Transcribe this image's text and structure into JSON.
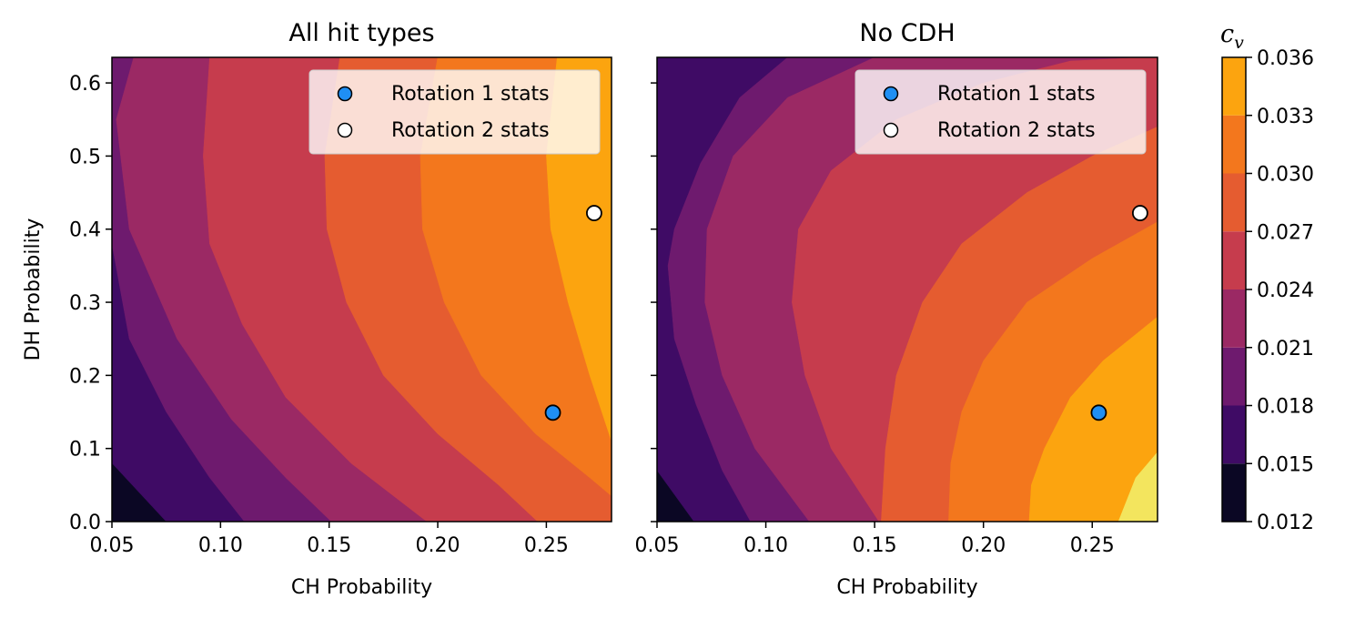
{
  "chart_data": {
    "type": "contourf",
    "colorbar": {
      "label": "c_v",
      "levels": [
        0.012,
        0.015,
        0.018,
        0.021,
        0.024,
        0.027,
        0.03,
        0.033,
        0.036
      ],
      "tick_labels": [
        "0.012",
        "0.015",
        "0.018",
        "0.021",
        "0.024",
        "0.027",
        "0.030",
        "0.033",
        "0.036"
      ],
      "colors": [
        "#0b0724",
        "#3f0b65",
        "#6e1a6e",
        "#9b2964",
        "#c63c4d",
        "#e55c30",
        "#f3771d",
        "#fca40f",
        "#f3e55e"
      ]
    },
    "colormap": "inferno",
    "shared": {
      "xlabel": "CH Probability",
      "ylabel": "DH Probability",
      "xlim": [
        0.05,
        0.28
      ],
      "ylim": [
        0.0,
        0.635
      ],
      "xticks": [
        0.05,
        0.1,
        0.15,
        0.2,
        0.25
      ],
      "xtick_labels": [
        "0.05",
        "0.10",
        "0.15",
        "0.20",
        "0.25"
      ],
      "yticks": [
        0.0,
        0.1,
        0.2,
        0.3,
        0.4,
        0.5,
        0.6
      ],
      "ytick_labels": [
        "0.0",
        "0.1",
        "0.2",
        "0.3",
        "0.4",
        "0.5",
        "0.6"
      ]
    },
    "panels": [
      {
        "title": "All hit types",
        "show_ylabel": true,
        "legend": {
          "placement": "top-right",
          "entries": [
            "Rotation 1 stats",
            "Rotation 2 stats"
          ]
        },
        "points": [
          {
            "name": "Rotation 1 stats",
            "x": 0.253,
            "y": 0.149,
            "color": "#1f8ff4"
          },
          {
            "name": "Rotation 2 stats",
            "x": 0.272,
            "y": 0.422,
            "color": "#ffffff"
          }
        ],
        "contour_boundaries": [
          {
            "level": 0.015,
            "pts": [
              [
                0.05,
                0.08
              ],
              [
                0.075,
                0.0
              ]
            ]
          },
          {
            "level": 0.018,
            "pts": [
              [
                0.05,
                0.38
              ],
              [
                0.058,
                0.25
              ],
              [
                0.075,
                0.15
              ],
              [
                0.095,
                0.06
              ],
              [
                0.111,
                0.0
              ]
            ]
          },
          {
            "level": 0.021,
            "pts": [
              [
                0.06,
                0.635
              ],
              [
                0.052,
                0.55
              ],
              [
                0.058,
                0.4
              ],
              [
                0.08,
                0.25
              ],
              [
                0.105,
                0.14
              ],
              [
                0.13,
                0.06
              ],
              [
                0.151,
                0.0
              ]
            ]
          },
          {
            "level": 0.024,
            "pts": [
              [
                0.095,
                0.635
              ],
              [
                0.092,
                0.5
              ],
              [
                0.095,
                0.38
              ],
              [
                0.11,
                0.27
              ],
              [
                0.13,
                0.17
              ],
              [
                0.16,
                0.08
              ],
              [
                0.195,
                0.0
              ]
            ]
          },
          {
            "level": 0.027,
            "pts": [
              [
                0.155,
                0.635
              ],
              [
                0.148,
                0.5
              ],
              [
                0.149,
                0.4
              ],
              [
                0.158,
                0.3
              ],
              [
                0.175,
                0.2
              ],
              [
                0.2,
                0.12
              ],
              [
                0.228,
                0.05
              ],
              [
                0.246,
                0.0
              ]
            ]
          },
          {
            "level": 0.03,
            "pts": [
              [
                0.2,
                0.635
              ],
              [
                0.192,
                0.5
              ],
              [
                0.193,
                0.4
              ],
              [
                0.203,
                0.3
              ],
              [
                0.22,
                0.2
              ],
              [
                0.245,
                0.12
              ],
              [
                0.27,
                0.06
              ],
              [
                0.28,
                0.035
              ]
            ]
          },
          {
            "level": 0.033,
            "pts": [
              [
                0.255,
                0.635
              ],
              [
                0.25,
                0.5
              ],
              [
                0.252,
                0.4
              ],
              [
                0.26,
                0.3
              ],
              [
                0.27,
                0.2
              ],
              [
                0.28,
                0.11
              ]
            ]
          },
          {
            "level": 0.036,
            "pts": [
              [
                0.28,
                0.635
              ],
              [
                0.28,
                0.635
              ]
            ]
          }
        ]
      },
      {
        "title": "No CDH",
        "show_ylabel": false,
        "legend": {
          "placement": "top-right",
          "entries": [
            "Rotation 1 stats",
            "Rotation 2 stats"
          ]
        },
        "points": [
          {
            "name": "Rotation 1 stats",
            "x": 0.253,
            "y": 0.149,
            "color": "#1f8ff4"
          },
          {
            "name": "Rotation 2 stats",
            "x": 0.272,
            "y": 0.422,
            "color": "#ffffff"
          }
        ],
        "contour_boundaries": [
          {
            "level": 0.015,
            "pts": [
              [
                0.05,
                0.07
              ],
              [
                0.067,
                0.0
              ]
            ]
          },
          {
            "level": 0.018,
            "pts": [
              [
                0.11,
                0.635
              ],
              [
                0.088,
                0.58
              ],
              [
                0.07,
                0.49
              ],
              [
                0.058,
                0.4
              ],
              [
                0.055,
                0.35
              ],
              [
                0.058,
                0.25
              ],
              [
                0.068,
                0.16
              ],
              [
                0.08,
                0.07
              ],
              [
                0.093,
                0.0
              ]
            ]
          },
          {
            "level": 0.021,
            "pts": [
              [
                0.15,
                0.635
              ],
              [
                0.11,
                0.58
              ],
              [
                0.085,
                0.5
              ],
              [
                0.073,
                0.4
              ],
              [
                0.072,
                0.3
              ],
              [
                0.08,
                0.2
              ],
              [
                0.095,
                0.1
              ],
              [
                0.12,
                0.0
              ]
            ]
          },
          {
            "level": 0.024,
            "pts": [
              [
                0.275,
                0.635
              ],
              [
                0.24,
                0.63
              ],
              [
                0.2,
                0.6
              ],
              [
                0.16,
                0.55
              ],
              [
                0.13,
                0.48
              ],
              [
                0.115,
                0.4
              ],
              [
                0.112,
                0.3
              ],
              [
                0.118,
                0.2
              ],
              [
                0.13,
                0.1
              ],
              [
                0.152,
                0.0
              ]
            ]
          },
          {
            "level": 0.027,
            "pts": [
              [
                0.28,
                0.54
              ],
              [
                0.25,
                0.5
              ],
              [
                0.22,
                0.45
              ],
              [
                0.19,
                0.38
              ],
              [
                0.172,
                0.3
              ],
              [
                0.16,
                0.2
              ],
              [
                0.155,
                0.1
              ],
              [
                0.153,
                0.0
              ]
            ]
          },
          {
            "level": 0.03,
            "pts": [
              [
                0.28,
                0.41
              ],
              [
                0.25,
                0.36
              ],
              [
                0.22,
                0.3
              ],
              [
                0.2,
                0.22
              ],
              [
                0.19,
                0.15
              ],
              [
                0.185,
                0.08
              ],
              [
                0.184,
                0.0
              ]
            ]
          },
          {
            "level": 0.033,
            "pts": [
              [
                0.28,
                0.28
              ],
              [
                0.255,
                0.22
              ],
              [
                0.24,
                0.17
              ],
              [
                0.228,
                0.1
              ],
              [
                0.222,
                0.05
              ],
              [
                0.221,
                0.0
              ]
            ]
          },
          {
            "level": 0.036,
            "pts": [
              [
                0.28,
                0.095
              ],
              [
                0.27,
                0.06
              ],
              [
                0.262,
                0.0
              ]
            ]
          }
        ]
      }
    ]
  }
}
